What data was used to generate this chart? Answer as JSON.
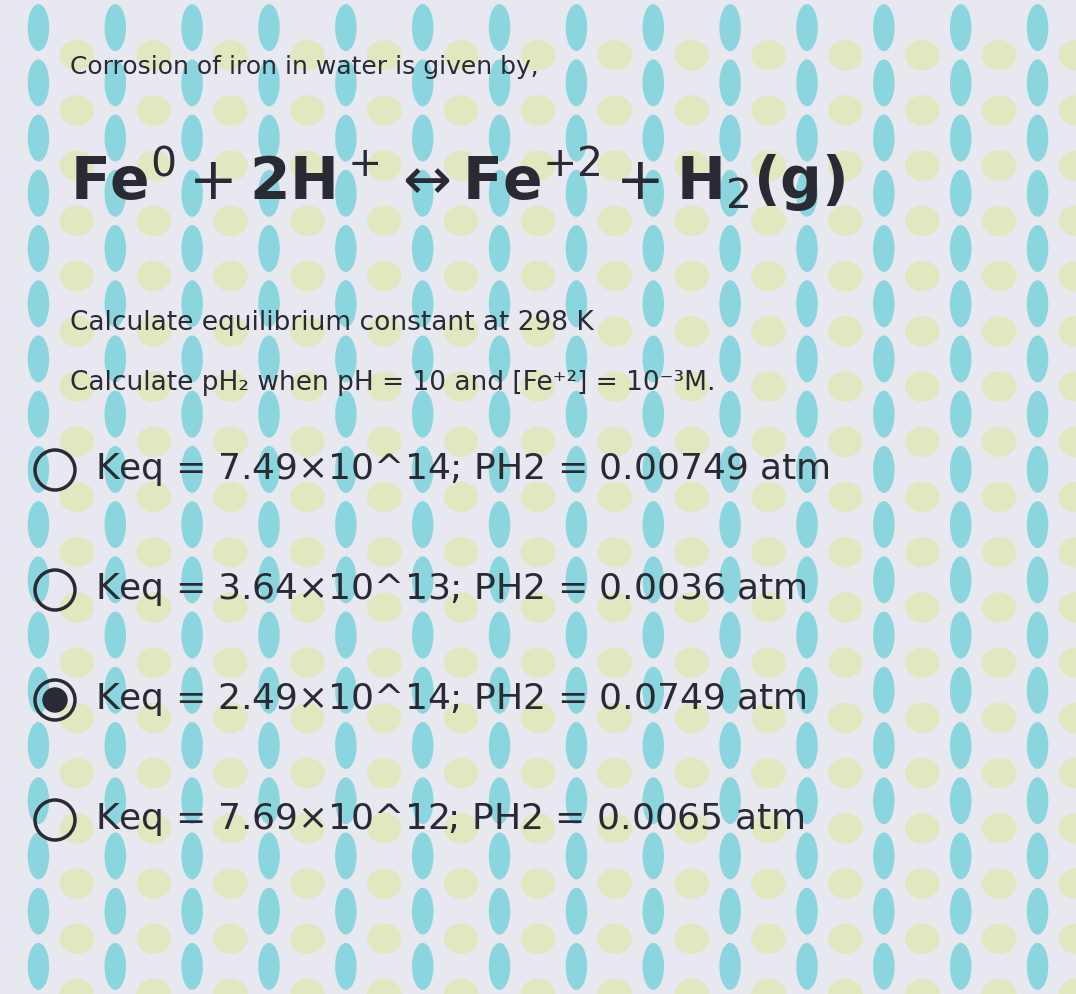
{
  "background_base": "#e8e8f0",
  "title_text": "Corrosion of iron in water is given by,",
  "question1": "Calculate equilibrium constant at 298 K",
  "question2": "Calculate pH₂ when pH = 10 and [Fe⁺²] = 10⁻³M.",
  "options": [
    {
      "label": "Keq = 7.49×10^14; PH2 = 0.00749 atm",
      "selected": false
    },
    {
      "label": "Keq = 3.64×10^13; PH2 = 0.0036 atm",
      "selected": false
    },
    {
      "label": "Keq = 2.49×10^14; PH2 = 0.0749 atm",
      "selected": true
    },
    {
      "label": "Keq = 7.69×10^12; PH2 = 0.0065 atm",
      "selected": false
    }
  ],
  "text_color": "#2a2a35",
  "option_font_size": 26,
  "title_font_size": 18,
  "eq_font_size": 42,
  "question_font_size": 19,
  "cyan_color": "#40c8d0",
  "yellow_color": "#d8e890",
  "pattern_cols": 14,
  "pattern_rows": 18
}
